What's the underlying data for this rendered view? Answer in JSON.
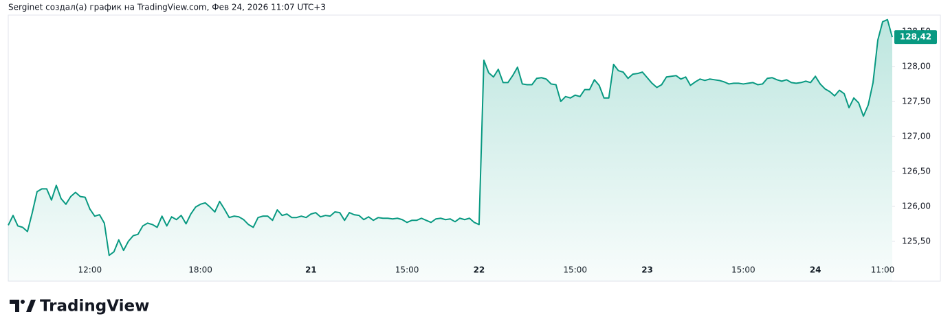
{
  "chart_data": {
    "type": "area",
    "title": "Serginet создал(а) график на TradingView.com, Фев 24, 2026 11:07 UTC+3",
    "brand": "TradingView",
    "categories": [
      null,
      null,
      null,
      null,
      null,
      null,
      null,
      null,
      null,
      null,
      null,
      null,
      null,
      null,
      null,
      null,
      null,
      "12:00",
      null,
      null,
      null,
      null,
      null,
      null,
      null,
      null,
      null,
      null,
      null,
      null,
      null,
      null,
      null,
      null,
      null,
      null,
      null,
      null,
      null,
      null,
      "18:00",
      null,
      null,
      null,
      null,
      null,
      null,
      null,
      null,
      null,
      null,
      null,
      null,
      null,
      null,
      null,
      null,
      null,
      null,
      null,
      null,
      null,
      null,
      "21",
      null,
      null,
      null,
      null,
      null,
      null,
      null,
      null,
      null,
      null,
      null,
      null,
      null,
      null,
      null,
      null,
      null,
      null,
      null,
      "15:00",
      null,
      null,
      null,
      null,
      null,
      null,
      null,
      null,
      null,
      null,
      null,
      null,
      null,
      null,
      "22",
      null,
      null,
      null,
      null,
      null,
      null,
      null,
      null,
      null,
      null,
      null,
      null,
      null,
      null,
      null,
      null,
      null,
      null,
      null,
      "15:00",
      null,
      null,
      null,
      null,
      null,
      null,
      null,
      null,
      null,
      null,
      null,
      null,
      null,
      null,
      "23",
      null,
      null,
      null,
      null,
      null,
      null,
      null,
      null,
      null,
      null,
      null,
      null,
      null,
      null,
      null,
      null,
      null,
      null,
      null,
      "15:00",
      null,
      null,
      null,
      null,
      null,
      null,
      null,
      null,
      null,
      null,
      null,
      null,
      null,
      null,
      "24",
      null,
      null,
      null,
      null,
      null,
      null,
      null,
      null,
      null,
      null,
      null,
      null,
      null,
      "11:00",
      null,
      null
    ],
    "series": [
      {
        "color": "#089981",
        "values": [
          125.73,
          125.87,
          125.72,
          125.7,
          125.64,
          125.91,
          126.21,
          126.25,
          126.25,
          126.09,
          126.3,
          126.11,
          126.03,
          126.14,
          126.2,
          126.14,
          126.13,
          125.96,
          125.86,
          125.88,
          125.76,
          125.3,
          125.35,
          125.52,
          125.37,
          125.5,
          125.58,
          125.6,
          125.72,
          125.76,
          125.74,
          125.7,
          125.86,
          125.72,
          125.85,
          125.81,
          125.87,
          125.75,
          125.89,
          125.99,
          126.03,
          126.05,
          125.99,
          125.92,
          126.07,
          125.96,
          125.84,
          125.86,
          125.85,
          125.81,
          125.74,
          125.7,
          125.84,
          125.86,
          125.86,
          125.8,
          125.95,
          125.87,
          125.89,
          125.84,
          125.84,
          125.86,
          125.84,
          125.89,
          125.91,
          125.85,
          125.87,
          125.86,
          125.92,
          125.91,
          125.8,
          125.91,
          125.88,
          125.87,
          125.81,
          125.85,
          125.8,
          125.84,
          125.83,
          125.83,
          125.82,
          125.83,
          125.81,
          125.77,
          125.8,
          125.8,
          125.83,
          125.8,
          125.77,
          125.82,
          125.83,
          125.81,
          125.82,
          125.78,
          125.83,
          125.81,
          125.83,
          125.77,
          125.74,
          128.09,
          127.91,
          127.85,
          127.96,
          127.77,
          127.77,
          127.87,
          127.99,
          127.75,
          127.74,
          127.74,
          127.83,
          127.84,
          127.82,
          127.75,
          127.74,
          127.5,
          127.57,
          127.55,
          127.59,
          127.57,
          127.67,
          127.67,
          127.81,
          127.73,
          127.55,
          127.55,
          128.03,
          127.94,
          127.92,
          127.83,
          127.89,
          127.9,
          127.92,
          127.84,
          127.76,
          127.7,
          127.74,
          127.85,
          127.86,
          127.87,
          127.82,
          127.85,
          127.73,
          127.78,
          127.82,
          127.8,
          127.82,
          127.81,
          127.8,
          127.78,
          127.75,
          127.76,
          127.76,
          127.75,
          127.76,
          127.77,
          127.74,
          127.75,
          127.83,
          127.84,
          127.81,
          127.79,
          127.81,
          127.77,
          127.76,
          127.77,
          127.79,
          127.77,
          127.86,
          127.75,
          127.68,
          127.64,
          127.58,
          127.66,
          127.61,
          127.41,
          127.55,
          127.48,
          127.29,
          127.45,
          127.77,
          128.38,
          128.64,
          128.67,
          128.42
        ],
        "value_labels": [
          null,
          null,
          null,
          null,
          null,
          null,
          null,
          null,
          null,
          null,
          null,
          null,
          null,
          null,
          null,
          null,
          null,
          null,
          null,
          null,
          null,
          null,
          null,
          null,
          null,
          null,
          null,
          null,
          null,
          null,
          null,
          null,
          null,
          null,
          null,
          null,
          null,
          null,
          null,
          null,
          null,
          null,
          null,
          null,
          null,
          null,
          null,
          null,
          null,
          null,
          null,
          null,
          null,
          null,
          null,
          null,
          null,
          null,
          null,
          null,
          null,
          null,
          null,
          null,
          null,
          null,
          null,
          null,
          null,
          null,
          null,
          null,
          null,
          null,
          null,
          null,
          null,
          null,
          null,
          null,
          null,
          null,
          null,
          null,
          null,
          null,
          null,
          null,
          null,
          null,
          null,
          null,
          null,
          null,
          null,
          null,
          null,
          null,
          null,
          null,
          null,
          null,
          null,
          null,
          null,
          null,
          null,
          null,
          null,
          null,
          null,
          null,
          null,
          null,
          null,
          null,
          null,
          null,
          null,
          null,
          null,
          null,
          null,
          null,
          null,
          null,
          null,
          null,
          null,
          null,
          null,
          null,
          null,
          null,
          null,
          null,
          null,
          null,
          null,
          null,
          null,
          null,
          null,
          null,
          null,
          null,
          null,
          null,
          null,
          null,
          null,
          null,
          null,
          null,
          null,
          null,
          null,
          null,
          null,
          null,
          null,
          null,
          null,
          null,
          null,
          null,
          null,
          null,
          null,
          null,
          null,
          null,
          null,
          null,
          null,
          null,
          null,
          null,
          null,
          null,
          null,
          null,
          null,
          null,
          "128,42"
        ]
      }
    ],
    "ylim": [
      124.93,
      128.735
    ],
    "yticks": [
      {
        "value": 125.5,
        "label": "125,50"
      },
      {
        "value": 126,
        "label": "126,00"
      },
      {
        "value": 126.5,
        "label": "126,50"
      },
      {
        "value": 127,
        "label": "127,00"
      },
      {
        "value": 127.5,
        "label": "127,50"
      },
      {
        "value": 128,
        "label": "128,00"
      },
      {
        "value": 128.5,
        "label": "128,50"
      }
    ],
    "grid": false
  }
}
